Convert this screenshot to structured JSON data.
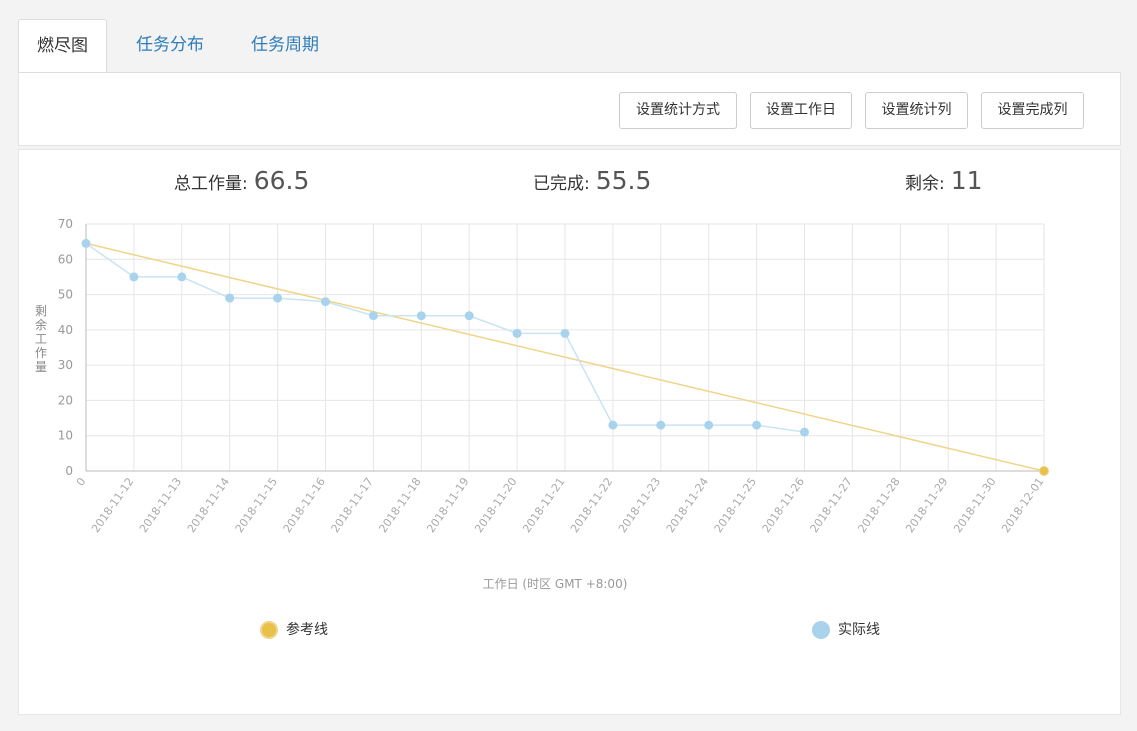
{
  "tabs": [
    {
      "label": "燃尽图",
      "active": true
    },
    {
      "label": "任务分布",
      "active": false
    },
    {
      "label": "任务周期",
      "active": false
    }
  ],
  "toolbar": {
    "buttons": [
      "设置统计方式",
      "设置工作日",
      "设置统计列",
      "设置完成列"
    ]
  },
  "summary": {
    "total_label": "总工作量:",
    "total_value": "66.5",
    "done_label": "已完成:",
    "done_value": "55.5",
    "remaining_label": "剩余:",
    "remaining_value": "11"
  },
  "colors": {
    "reference": "#f0d488",
    "reference_dot": "#e9c14a",
    "actual": "#a9d3ec",
    "actual_line": "#c9e4f4",
    "tab_link": "#2e7db8"
  },
  "chart_data": {
    "type": "line",
    "x": [
      "0",
      "2018-11-12",
      "2018-11-13",
      "2018-11-14",
      "2018-11-15",
      "2018-11-16",
      "2018-11-17",
      "2018-11-18",
      "2018-11-19",
      "2018-11-20",
      "2018-11-21",
      "2018-11-22",
      "2018-11-23",
      "2018-11-24",
      "2018-11-25",
      "2018-11-26",
      "2018-11-27",
      "2018-11-28",
      "2018-11-29",
      "2018-11-30",
      "2018-12-01"
    ],
    "series": [
      {
        "name": "参考线",
        "values": [
          64.5,
          null,
          null,
          null,
          null,
          null,
          null,
          null,
          null,
          null,
          null,
          null,
          null,
          null,
          null,
          null,
          null,
          null,
          null,
          null,
          0
        ]
      },
      {
        "name": "实际线",
        "values": [
          64.5,
          55,
          55,
          49,
          49,
          48,
          44,
          44,
          44,
          39,
          39,
          13,
          13,
          13,
          13,
          11,
          null,
          null,
          null,
          null,
          null
        ]
      }
    ],
    "xlabel": "工作日 (时区 GMT +8:00)",
    "ylabel": "剩余工作量",
    "ylim": [
      0,
      70
    ],
    "yticks": [
      0,
      10,
      20,
      30,
      40,
      50,
      60,
      70
    ],
    "grid": true,
    "legend": "bottom"
  }
}
